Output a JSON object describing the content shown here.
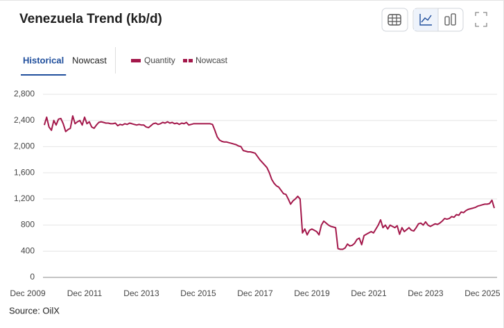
{
  "header": {
    "title": "Venezuela Trend (kb/d)"
  },
  "tabs": [
    "Historical",
    "Nowcast"
  ],
  "active_tab": 0,
  "source": "Source: OilX",
  "chart_data": {
    "type": "line",
    "nowcast": {
      "name": "Nowcast",
      "color": "#a3174a"
    },
    "x": [
      "2010-07",
      "2010-08",
      "2010-09",
      "2010-10",
      "2010-11",
      "2010-12",
      "2011-01",
      "2011-02",
      "2011-03",
      "2011-04",
      "2011-05",
      "2011-06",
      "2011-07",
      "2011-08",
      "2011-09",
      "2011-10",
      "2011-11",
      "2011-12",
      "2012-01",
      "2012-02",
      "2012-03",
      "2012-04",
      "2012-05",
      "2012-06",
      "2012-07",
      "2012-08",
      "2012-09",
      "2012-10",
      "2012-11",
      "2012-12",
      "2013-01",
      "2013-02",
      "2013-03",
      "2013-04",
      "2013-05",
      "2013-06",
      "2013-07",
      "2013-08",
      "2013-09",
      "2013-10",
      "2013-11",
      "2013-12",
      "2014-01",
      "2014-02",
      "2014-03",
      "2014-04",
      "2014-05",
      "2014-06",
      "2014-07",
      "2014-08",
      "2014-09",
      "2014-10",
      "2014-11",
      "2014-12",
      "2015-01",
      "2015-02",
      "2015-03",
      "2015-04",
      "2015-05",
      "2015-06",
      "2015-07",
      "2015-08",
      "2015-09",
      "2015-10",
      "2015-11",
      "2015-12",
      "2016-01",
      "2016-02",
      "2016-03",
      "2016-04",
      "2016-05",
      "2016-06",
      "2016-07",
      "2016-08",
      "2016-09",
      "2016-10",
      "2016-11",
      "2016-12",
      "2017-01",
      "2017-02",
      "2017-03",
      "2017-04",
      "2017-05",
      "2017-06",
      "2017-07",
      "2017-08",
      "2017-09",
      "2017-10",
      "2017-11",
      "2017-12",
      "2018-01",
      "2018-02",
      "2018-03",
      "2018-04",
      "2018-05",
      "2018-06",
      "2018-07",
      "2018-08",
      "2018-09",
      "2018-10",
      "2018-11",
      "2018-12",
      "2019-01",
      "2019-02",
      "2019-03",
      "2019-04",
      "2019-05",
      "2019-06",
      "2019-07",
      "2019-08",
      "2019-09",
      "2019-10",
      "2019-11",
      "2019-12",
      "2020-01",
      "2020-02",
      "2020-03",
      "2020-04",
      "2020-05",
      "2020-06",
      "2020-07",
      "2020-08",
      "2020-09",
      "2020-10",
      "2020-11",
      "2020-12",
      "2021-01",
      "2021-02",
      "2021-03",
      "2021-04",
      "2021-05",
      "2021-06",
      "2021-07",
      "2021-08",
      "2021-09",
      "2021-10",
      "2021-11",
      "2021-12",
      "2022-01",
      "2022-02",
      "2022-03",
      "2022-04",
      "2022-05",
      "2022-06",
      "2022-07",
      "2022-08",
      "2022-09",
      "2022-10",
      "2022-11",
      "2022-12",
      "2023-01",
      "2023-02",
      "2023-03",
      "2023-04",
      "2023-05",
      "2023-06",
      "2023-07",
      "2023-08",
      "2023-09",
      "2023-10",
      "2023-11",
      "2023-12",
      "2024-01",
      "2024-02",
      "2024-03",
      "2024-04",
      "2024-05",
      "2024-06",
      "2024-07",
      "2024-08",
      "2024-09",
      "2024-10",
      "2024-11",
      "2024-12",
      "2025-01",
      "2025-02",
      "2025-03",
      "2025-04",
      "2025-05",
      "2025-06",
      "2025-07",
      "2025-08",
      "2025-09",
      "2025-10",
      "2025-11",
      "2025-12",
      "2026-01",
      "2026-02",
      "2026-03",
      "2026-04",
      "2026-05"
    ],
    "series": [
      {
        "name": "Quantity",
        "color": "#a3174a",
        "values": [
          2330,
          2450,
          2300,
          2250,
          2400,
          2330,
          2420,
          2430,
          2350,
          2230,
          2260,
          2280,
          2470,
          2350,
          2380,
          2400,
          2330,
          2450,
          2350,
          2380,
          2300,
          2280,
          2330,
          2370,
          2380,
          2370,
          2360,
          2360,
          2350,
          2350,
          2360,
          2320,
          2340,
          2330,
          2350,
          2340,
          2360,
          2350,
          2340,
          2330,
          2340,
          2330,
          2330,
          2300,
          2290,
          2320,
          2350,
          2360,
          2340,
          2350,
          2370,
          2360,
          2380,
          2360,
          2370,
          2350,
          2360,
          2340,
          2360,
          2350,
          2370,
          2330,
          2340,
          2350,
          2350,
          2350,
          2350,
          2350,
          2350,
          2350,
          2350,
          2340,
          2250,
          2150,
          2100,
          2080,
          2070,
          2070,
          2060,
          2050,
          2040,
          2030,
          2010,
          2000,
          1940,
          1930,
          1920,
          1920,
          1910,
          1900,
          1850,
          1800,
          1760,
          1720,
          1680,
          1600,
          1500,
          1440,
          1400,
          1380,
          1330,
          1280,
          1270,
          1200,
          1120,
          1170,
          1200,
          1240,
          1200,
          680,
          740,
          650,
          720,
          740,
          720,
          700,
          650,
          800,
          860,
          830,
          800,
          780,
          770,
          760,
          440,
          430,
          430,
          450,
          510,
          480,
          490,
          520,
          580,
          600,
          500,
          640,
          660,
          680,
          700,
          680,
          740,
          800,
          880,
          760,
          800,
          740,
          800,
          780,
          760,
          790,
          660,
          760,
          700,
          730,
          760,
          720,
          710,
          760,
          820,
          830,
          800,
          850,
          800,
          780,
          800,
          820,
          810,
          830,
          860,
          900,
          890,
          900,
          930,
          920,
          960,
          950,
          1000,
          990,
          1020,
          1040,
          1050,
          1060,
          1070,
          1090,
          1100,
          1110,
          1120,
          1120,
          1130,
          1180,
          1060
        ]
      }
    ],
    "xlim": [
      "2009-12",
      "2026-05"
    ],
    "xticks": [
      {
        "value": "2009-12",
        "label": "Dec 2009"
      },
      {
        "value": "2011-12",
        "label": "Dec 2011"
      },
      {
        "value": "2013-12",
        "label": "Dec 2013"
      },
      {
        "value": "2015-12",
        "label": "Dec 2015"
      },
      {
        "value": "2017-12",
        "label": "Dec 2017"
      },
      {
        "value": "2019-12",
        "label": "Dec 2019"
      },
      {
        "value": "2021-12",
        "label": "Dec 2021"
      },
      {
        "value": "2023-12",
        "label": "Dec 2023"
      },
      {
        "value": "2025-12",
        "label": "Dec 2025"
      }
    ],
    "ylim": [
      0,
      2800
    ],
    "yticks": [
      0,
      400,
      800,
      {
        "value": 1200,
        "label": "1,200"
      },
      {
        "value": 1600,
        "label": "1,600"
      },
      {
        "value": 2000,
        "label": "2,000"
      },
      {
        "value": 2400,
        "label": "2,400"
      },
      {
        "value": 2800,
        "label": "2,800"
      }
    ],
    "grid": true
  }
}
